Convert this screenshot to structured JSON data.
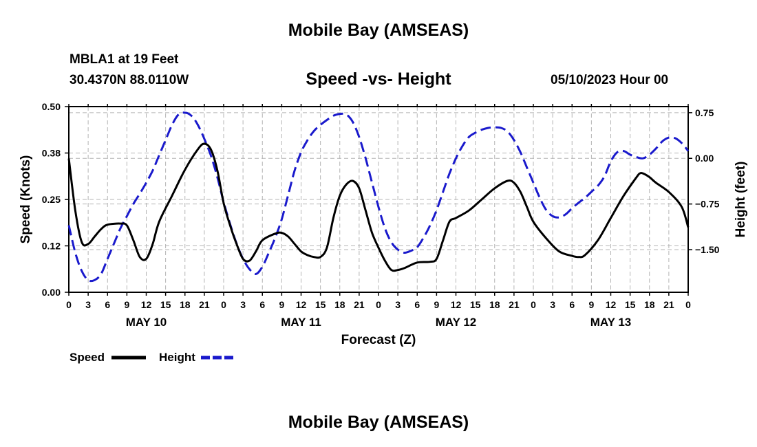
{
  "page": {
    "title_top": "Mobile Bay (AMSEAS)",
    "title_bottom": "Mobile Bay (AMSEAS)",
    "station": "MBLA1 at 19 Feet",
    "coords": "30.4370N  88.0110W",
    "date": "05/10/2023 Hour 00"
  },
  "chart_data": {
    "type": "line",
    "title": "Speed -vs- Height",
    "xlabel": "Forecast (Z)",
    "ylabel_left": "Speed (Knots)",
    "ylabel_right": "Height (feet)",
    "y_left_lim": [
      0,
      0.5
    ],
    "y_left_ticks": [
      0,
      0.125,
      0.25,
      0.375,
      0.5
    ],
    "y_left_tick_labels": [
      "0.00",
      "0.12",
      "0.25",
      "0.38",
      "0.50"
    ],
    "y_right_lim": [
      -2.2,
      0.85
    ],
    "y_right_ticks": [
      -1.5,
      -0.75,
      0.0,
      0.75
    ],
    "y_right_tick_labels": [
      "−1.50",
      "−0.75",
      "0.00",
      "0.75"
    ],
    "x_range_hours": [
      0,
      96
    ],
    "x_tick_step_hours": 3,
    "x_tick_labels": [
      "0",
      "3",
      "6",
      "9",
      "12",
      "15",
      "18",
      "21",
      "0",
      "3",
      "6",
      "9",
      "12",
      "15",
      "18",
      "21",
      "0",
      "3",
      "6",
      "9",
      "12",
      "15",
      "18",
      "21",
      "0",
      "3",
      "6",
      "9",
      "12",
      "15",
      "18",
      "21",
      "0"
    ],
    "day_labels": [
      {
        "label": "MAY 10",
        "hour": 12
      },
      {
        "label": "MAY 11",
        "hour": 36
      },
      {
        "label": "MAY 12",
        "hour": 60
      },
      {
        "label": "MAY 13",
        "hour": 84
      }
    ],
    "grid": true,
    "legend_position": "bottom-left",
    "series": [
      {
        "name": "Speed",
        "axis": "left",
        "color": "#000000",
        "dash": "solid",
        "points": [
          [
            0,
            0.36
          ],
          [
            1,
            0.22
          ],
          [
            2,
            0.135
          ],
          [
            3,
            0.13
          ],
          [
            4,
            0.15
          ],
          [
            5,
            0.17
          ],
          [
            6,
            0.182
          ],
          [
            8,
            0.185
          ],
          [
            9,
            0.18
          ],
          [
            10,
            0.14
          ],
          [
            11,
            0.095
          ],
          [
            12,
            0.09
          ],
          [
            13,
            0.13
          ],
          [
            14,
            0.19
          ],
          [
            16,
            0.26
          ],
          [
            18,
            0.33
          ],
          [
            20,
            0.385
          ],
          [
            21,
            0.4
          ],
          [
            22,
            0.385
          ],
          [
            23,
            0.33
          ],
          [
            24,
            0.24
          ],
          [
            25,
            0.18
          ],
          [
            26,
            0.13
          ],
          [
            27,
            0.09
          ],
          [
            28,
            0.085
          ],
          [
            29,
            0.11
          ],
          [
            30,
            0.14
          ],
          [
            32,
            0.158
          ],
          [
            33,
            0.16
          ],
          [
            34,
            0.15
          ],
          [
            35,
            0.13
          ],
          [
            36,
            0.11
          ],
          [
            37,
            0.1
          ],
          [
            38,
            0.095
          ],
          [
            39,
            0.095
          ],
          [
            40,
            0.12
          ],
          [
            41,
            0.2
          ],
          [
            42,
            0.26
          ],
          [
            43,
            0.29
          ],
          [
            44,
            0.3
          ],
          [
            45,
            0.28
          ],
          [
            46,
            0.22
          ],
          [
            47,
            0.16
          ],
          [
            48,
            0.12
          ],
          [
            49,
            0.085
          ],
          [
            50,
            0.06
          ],
          [
            51,
            0.06
          ],
          [
            52,
            0.065
          ],
          [
            54,
            0.08
          ],
          [
            56,
            0.082
          ],
          [
            57,
            0.09
          ],
          [
            58,
            0.14
          ],
          [
            59,
            0.19
          ],
          [
            60,
            0.2
          ],
          [
            62,
            0.22
          ],
          [
            64,
            0.25
          ],
          [
            66,
            0.28
          ],
          [
            68,
            0.3
          ],
          [
            69,
            0.295
          ],
          [
            70,
            0.27
          ],
          [
            71,
            0.23
          ],
          [
            72,
            0.19
          ],
          [
            74,
            0.145
          ],
          [
            76,
            0.11
          ],
          [
            78,
            0.098
          ],
          [
            79,
            0.095
          ],
          [
            80,
            0.1
          ],
          [
            82,
            0.14
          ],
          [
            84,
            0.2
          ],
          [
            86,
            0.26
          ],
          [
            88,
            0.31
          ],
          [
            88.5,
            0.32
          ],
          [
            89,
            0.32
          ],
          [
            90,
            0.31
          ],
          [
            91,
            0.295
          ],
          [
            93,
            0.27
          ],
          [
            95,
            0.23
          ],
          [
            96,
            0.175
          ]
        ]
      },
      {
        "name": "Height",
        "axis": "right",
        "color": "#1a1acc",
        "dash": "dashed",
        "points": [
          [
            0,
            -1.1
          ],
          [
            1,
            -1.55
          ],
          [
            2,
            -1.85
          ],
          [
            3,
            -2.0
          ],
          [
            4,
            -2.0
          ],
          [
            5,
            -1.9
          ],
          [
            6,
            -1.65
          ],
          [
            7,
            -1.4
          ],
          [
            8,
            -1.15
          ],
          [
            9,
            -0.95
          ],
          [
            10,
            -0.75
          ],
          [
            11,
            -0.58
          ],
          [
            12,
            -0.4
          ],
          [
            13,
            -0.2
          ],
          [
            14,
            0.05
          ],
          [
            15,
            0.3
          ],
          [
            16,
            0.55
          ],
          [
            17,
            0.72
          ],
          [
            18,
            0.75
          ],
          [
            19,
            0.7
          ],
          [
            20,
            0.55
          ],
          [
            21,
            0.32
          ],
          [
            22,
            0.05
          ],
          [
            23,
            -0.3
          ],
          [
            24,
            -0.72
          ],
          [
            25,
            -1.08
          ],
          [
            26,
            -1.4
          ],
          [
            27,
            -1.65
          ],
          [
            28,
            -1.82
          ],
          [
            29,
            -1.9
          ],
          [
            30,
            -1.78
          ],
          [
            31,
            -1.55
          ],
          [
            32,
            -1.3
          ],
          [
            33,
            -1.0
          ],
          [
            34,
            -0.6
          ],
          [
            35,
            -0.2
          ],
          [
            36,
            0.1
          ],
          [
            37,
            0.3
          ],
          [
            38,
            0.45
          ],
          [
            39,
            0.55
          ],
          [
            40,
            0.63
          ],
          [
            41,
            0.7
          ],
          [
            42,
            0.73
          ],
          [
            43,
            0.72
          ],
          [
            44,
            0.6
          ],
          [
            45,
            0.35
          ],
          [
            46,
            0.0
          ],
          [
            47,
            -0.4
          ],
          [
            48,
            -0.8
          ],
          [
            49,
            -1.15
          ],
          [
            50,
            -1.38
          ],
          [
            51,
            -1.5
          ],
          [
            52,
            -1.55
          ],
          [
            53,
            -1.52
          ],
          [
            54,
            -1.46
          ],
          [
            55,
            -1.3
          ],
          [
            56,
            -1.1
          ],
          [
            57,
            -0.85
          ],
          [
            58,
            -0.55
          ],
          [
            59,
            -0.25
          ],
          [
            60,
            0.0
          ],
          [
            61,
            0.2
          ],
          [
            62,
            0.35
          ],
          [
            63,
            0.42
          ],
          [
            64,
            0.47
          ],
          [
            65,
            0.5
          ],
          [
            66,
            0.51
          ],
          [
            67,
            0.5
          ],
          [
            68,
            0.44
          ],
          [
            69,
            0.3
          ],
          [
            70,
            0.1
          ],
          [
            71,
            -0.15
          ],
          [
            72,
            -0.4
          ],
          [
            73,
            -0.65
          ],
          [
            74,
            -0.85
          ],
          [
            75,
            -0.95
          ],
          [
            76,
            -0.97
          ],
          [
            77,
            -0.92
          ],
          [
            78,
            -0.82
          ],
          [
            79,
            -0.73
          ],
          [
            80,
            -0.65
          ],
          [
            81,
            -0.55
          ],
          [
            82,
            -0.45
          ],
          [
            83,
            -0.3
          ],
          [
            84,
            -0.05
          ],
          [
            85,
            0.1
          ],
          [
            86,
            0.12
          ],
          [
            87,
            0.06
          ],
          [
            88,
            0.02
          ],
          [
            89,
            0.0
          ],
          [
            90,
            0.06
          ],
          [
            91,
            0.16
          ],
          [
            92,
            0.28
          ],
          [
            93,
            0.34
          ],
          [
            94,
            0.33
          ],
          [
            95,
            0.25
          ],
          [
            96,
            0.12
          ]
        ]
      }
    ]
  }
}
